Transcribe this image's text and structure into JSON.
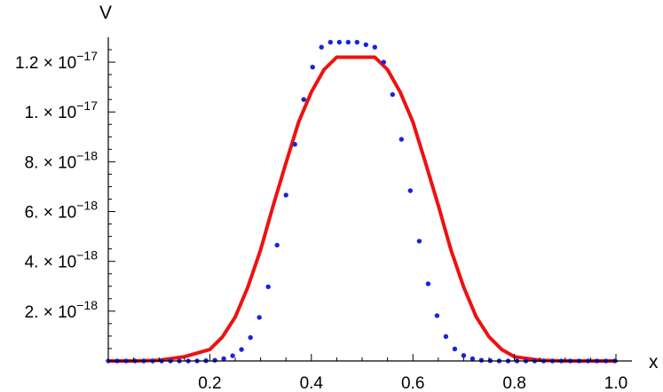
{
  "chart_data": {
    "type": "scatter",
    "xlabel": "x",
    "ylabel": "V",
    "xlim": [
      0,
      1.0
    ],
    "ylim": [
      0,
      1.3e-17
    ],
    "x_ticks": [
      {
        "value": 0.2,
        "label": "0.2"
      },
      {
        "value": 0.4,
        "label": "0.4"
      },
      {
        "value": 0.6,
        "label": "0.6"
      },
      {
        "value": 0.8,
        "label": "0.8"
      },
      {
        "value": 1.0,
        "label": "1.0"
      }
    ],
    "y_ticks": [
      {
        "value": 2e-18,
        "mantissa": "2.",
        "times": " × ",
        "base": "10",
        "exp": "−18"
      },
      {
        "value": 4e-18,
        "mantissa": "4.",
        "times": " × ",
        "base": "10",
        "exp": "−18"
      },
      {
        "value": 6e-18,
        "mantissa": "6.",
        "times": " × ",
        "base": "10",
        "exp": "−18"
      },
      {
        "value": 8e-18,
        "mantissa": "8.",
        "times": " × ",
        "base": "10",
        "exp": "−18"
      },
      {
        "value": 1e-17,
        "mantissa": "1.",
        "times": " × ",
        "base": "10",
        "exp": "−17"
      },
      {
        "value": 1.2e-17,
        "mantissa": "1.2",
        "times": " × ",
        "base": "10",
        "exp": "−17"
      }
    ],
    "grid": false,
    "series": [
      {
        "style": "dots",
        "color": "#1a22e0",
        "peak_x": 0.5,
        "peak_y": 1.27e-17,
        "x": [
          0.0,
          0.0175,
          0.035,
          0.0525,
          0.07,
          0.0875,
          0.105,
          0.1225,
          0.14,
          0.1575,
          0.175,
          0.1925,
          0.21,
          0.2275,
          0.245,
          0.2625,
          0.28,
          0.2975,
          0.315,
          0.3325,
          0.35,
          0.3675,
          0.385,
          0.4025,
          0.42,
          0.4375,
          0.455,
          0.4725,
          0.49,
          0.5075,
          0.525,
          0.5425,
          0.56,
          0.5775,
          0.595,
          0.6125,
          0.63,
          0.6475,
          0.665,
          0.6825,
          0.7,
          0.7175,
          0.735,
          0.7525,
          0.77,
          0.7875,
          0.805,
          0.8225,
          0.84,
          0.8575,
          0.875,
          0.8925,
          0.91,
          0.9275,
          0.945,
          0.9625,
          0.98,
          0.9975
        ],
        "y": [
          0,
          0,
          0,
          0,
          0,
          0,
          0,
          0,
          0,
          0,
          0,
          1e-20,
          3e-20,
          9e-20,
          2.1e-19,
          4.6e-19,
          9.4e-19,
          1.75e-18,
          2.98e-18,
          4.65e-18,
          6.66e-18,
          8.7e-18,
          1.05e-17,
          1.18e-17,
          1.26e-17,
          1.28e-17,
          1.28e-17,
          1.28e-17,
          1.28e-17,
          1.27e-17,
          1.26e-17,
          1.2e-17,
          1.07e-17,
          8.9e-18,
          6.84e-18,
          4.81e-18,
          3.1e-18,
          1.82e-18,
          9.8e-19,
          4.8e-19,
          2.2e-19,
          9e-20,
          3e-20,
          1e-20,
          0,
          0,
          0,
          0,
          0,
          0,
          0,
          0,
          0,
          0,
          0,
          0,
          0,
          0
        ]
      },
      {
        "style": "line",
        "color": "#ee1111",
        "peak_x": 0.5,
        "peak_y": 1.22e-17,
        "x": [
          0.0,
          0.05,
          0.1,
          0.15,
          0.2,
          0.225,
          0.25,
          0.275,
          0.3,
          0.325,
          0.35,
          0.375,
          0.4,
          0.425,
          0.45,
          0.475,
          0.49,
          0.51,
          0.525,
          0.55,
          0.575,
          0.6,
          0.625,
          0.65,
          0.675,
          0.7,
          0.725,
          0.75,
          0.775,
          0.8,
          0.85,
          0.9,
          0.95,
          1.0
        ],
        "y": [
          0,
          0,
          3e-20,
          1.7e-19,
          4.6e-19,
          9.7e-19,
          1.76e-18,
          2.97e-18,
          4.46e-18,
          6.25e-18,
          7.95e-18,
          9.6e-18,
          1.08e-17,
          1.17e-17,
          1.22e-17,
          1.22e-17,
          1.22e-17,
          1.22e-17,
          1.22e-17,
          1.17e-17,
          1.08e-17,
          9.6e-18,
          7.95e-18,
          6.25e-18,
          4.46e-18,
          2.97e-18,
          1.76e-18,
          9.7e-19,
          4.6e-19,
          1.7e-19,
          3e-20,
          0,
          0,
          0
        ]
      }
    ]
  }
}
